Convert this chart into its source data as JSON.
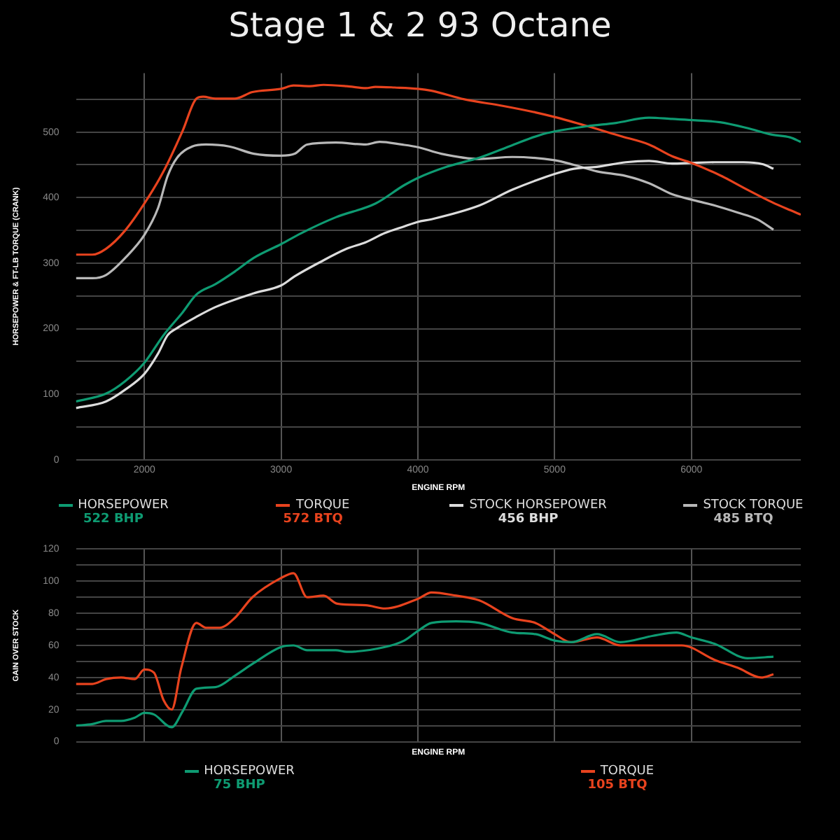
{
  "chart_data": [
    {
      "type": "line",
      "title": "Stage 1 & 2 93 Octane",
      "xlabel": "ENGINE RPM",
      "ylabel": "HORSEPOWER & FT-LB TORQUE (CRANK)",
      "xlim": [
        1500,
        6800
      ],
      "xticks": [
        2000,
        3000,
        4000,
        5000,
        6000
      ],
      "ylim": [
        0,
        590
      ],
      "yticks": [
        0,
        {
          "value": 50,
          "label": null
        },
        100,
        {
          "value": 150,
          "label": null
        },
        200,
        {
          "value": 250,
          "label": null
        },
        300,
        {
          "value": 350,
          "label": null
        },
        400,
        {
          "value": 450,
          "label": null
        },
        500,
        {
          "value": 550,
          "label": null
        }
      ],
      "grid": true,
      "legend": "bottom",
      "marker": "none",
      "annotations": [
        "522 BHP",
        "572 BTQ",
        "456 BHP",
        "485 BTQ"
      ],
      "series": [
        {
          "name": "HORSEPOWER",
          "color": "#0e9b72",
          "x": [
            1500,
            1720,
            1860,
            2000,
            2140,
            2280,
            2380,
            2520,
            2660,
            2800,
            3000,
            3150,
            3400,
            3690,
            3900,
            4000,
            4210,
            4450,
            4690,
            4900,
            5000,
            5240,
            5450,
            5690,
            5860,
            6030,
            6210,
            6410,
            6590,
            6720,
            6800
          ],
          "values": [
            89,
            101,
            120,
            148,
            190,
            225,
            252,
            268,
            287,
            308,
            329,
            346,
            370,
            391,
            419,
            430,
            447,
            461,
            480,
            496,
            501,
            509,
            514,
            522,
            520,
            518,
            515,
            506,
            496,
            492,
            485
          ]
        },
        {
          "name": "TORQUE",
          "color": "#e8431e",
          "x": [
            1500,
            1620,
            1720,
            1860,
            2000,
            2140,
            2280,
            2380,
            2430,
            2520,
            2660,
            2790,
            3000,
            3090,
            3210,
            3310,
            3480,
            3620,
            3690,
            3830,
            4000,
            4100,
            4340,
            4620,
            4860,
            5000,
            5240,
            5480,
            5690,
            5860,
            6000,
            6210,
            6410,
            6590,
            6720,
            6800
          ],
          "values": [
            313,
            313,
            322,
            350,
            391,
            440,
            502,
            551,
            554,
            551,
            551,
            561,
            566,
            571,
            570,
            572,
            570,
            567,
            569,
            568,
            566,
            563,
            550,
            540,
            530,
            523,
            509,
            494,
            481,
            463,
            453,
            434,
            412,
            393,
            381,
            374
          ]
        },
        {
          "name": "STOCK HORSEPOWER",
          "color": "#dcdcdc",
          "x": [
            1500,
            1720,
            1860,
            2000,
            2100,
            2170,
            2240,
            2380,
            2520,
            2800,
            3000,
            3100,
            3280,
            3480,
            3620,
            3760,
            3900,
            4000,
            4100,
            4450,
            4690,
            5000,
            5140,
            5310,
            5520,
            5690,
            5860,
            6000,
            6170,
            6380,
            6520,
            6600
          ],
          "values": [
            79,
            89,
            107,
            131,
            162,
            190,
            201,
            218,
            233,
            254,
            266,
            280,
            301,
            322,
            332,
            346,
            356,
            363,
            367,
            388,
            412,
            436,
            444,
            447,
            454,
            456,
            452,
            453,
            454,
            454,
            451,
            444
          ]
        },
        {
          "name": "STOCK TORQUE",
          "color": "#b8b8b8",
          "x": [
            1500,
            1620,
            1720,
            1860,
            2000,
            2100,
            2170,
            2240,
            2350,
            2450,
            2620,
            2800,
            3000,
            3100,
            3190,
            3400,
            3620,
            3720,
            3880,
            4000,
            4170,
            4450,
            4690,
            5000,
            5140,
            5310,
            5520,
            5690,
            5860,
            6000,
            6170,
            6340,
            6480,
            6600
          ],
          "values": [
            277,
            277,
            282,
            308,
            343,
            384,
            433,
            461,
            478,
            481,
            478,
            467,
            464,
            467,
            481,
            484,
            481,
            485,
            481,
            477,
            467,
            459,
            462,
            457,
            450,
            440,
            433,
            422,
            405,
            397,
            388,
            377,
            367,
            351
          ]
        }
      ]
    },
    {
      "type": "line",
      "xlabel": "ENGINE RPM",
      "ylabel": "GAIN OVER STOCK",
      "tick_labels": "y",
      "xlim": [
        1500,
        6800
      ],
      "xticks": [
        2000,
        3000,
        4000,
        5000,
        6000
      ],
      "ylim": [
        0,
        120
      ],
      "yticks": [
        0,
        {
          "value": 10,
          "label": null
        },
        20,
        {
          "value": 30,
          "label": null
        },
        40,
        {
          "value": 50,
          "label": null
        },
        60,
        {
          "value": 70,
          "label": null
        },
        80,
        {
          "value": 90,
          "label": null
        },
        100,
        {
          "value": 110,
          "label": null
        },
        120
      ],
      "grid": true,
      "legend": "bottom",
      "marker": "none",
      "annotations": [
        "75 BHP",
        "105 BTQ"
      ],
      "series": [
        {
          "name": "HORSEPOWER",
          "color": "#0e9b72",
          "x": [
            1500,
            1620,
            1720,
            1830,
            1930,
            2000,
            2070,
            2200,
            2280,
            2380,
            2520,
            2660,
            2800,
            3000,
            3090,
            3190,
            3400,
            3480,
            3760,
            3900,
            4000,
            4100,
            4280,
            4450,
            4690,
            4860,
            5000,
            5120,
            5310,
            5480,
            5720,
            5890,
            6000,
            6170,
            6410,
            6600
          ],
          "values": [
            10,
            11,
            13,
            13,
            15,
            18,
            17,
            9,
            19,
            33,
            34,
            41,
            49,
            59,
            60,
            57,
            57,
            56,
            59,
            63,
            69,
            74,
            75,
            74,
            68,
            67,
            63,
            62,
            67,
            62,
            66,
            68,
            65,
            61,
            52,
            53
          ]
        },
        {
          "name": "TORQUE",
          "color": "#e8431e",
          "x": [
            1500,
            1620,
            1720,
            1830,
            1930,
            2000,
            2070,
            2140,
            2200,
            2270,
            2380,
            2450,
            2550,
            2660,
            2790,
            3000,
            3090,
            3190,
            3310,
            3410,
            3620,
            3760,
            4000,
            4100,
            4280,
            4450,
            4690,
            4860,
            5000,
            5120,
            5310,
            5480,
            5720,
            5930,
            6170,
            6340,
            6510,
            6600
          ],
          "values": [
            36,
            36,
            39,
            40,
            39,
            45,
            43,
            26,
            20,
            46,
            74,
            71,
            71,
            77,
            90,
            102,
            105,
            90,
            91,
            86,
            85,
            83,
            89,
            93,
            91,
            88,
            77,
            74,
            67,
            62,
            65,
            60,
            60,
            60,
            51,
            46,
            40,
            42
          ]
        }
      ]
    }
  ]
}
